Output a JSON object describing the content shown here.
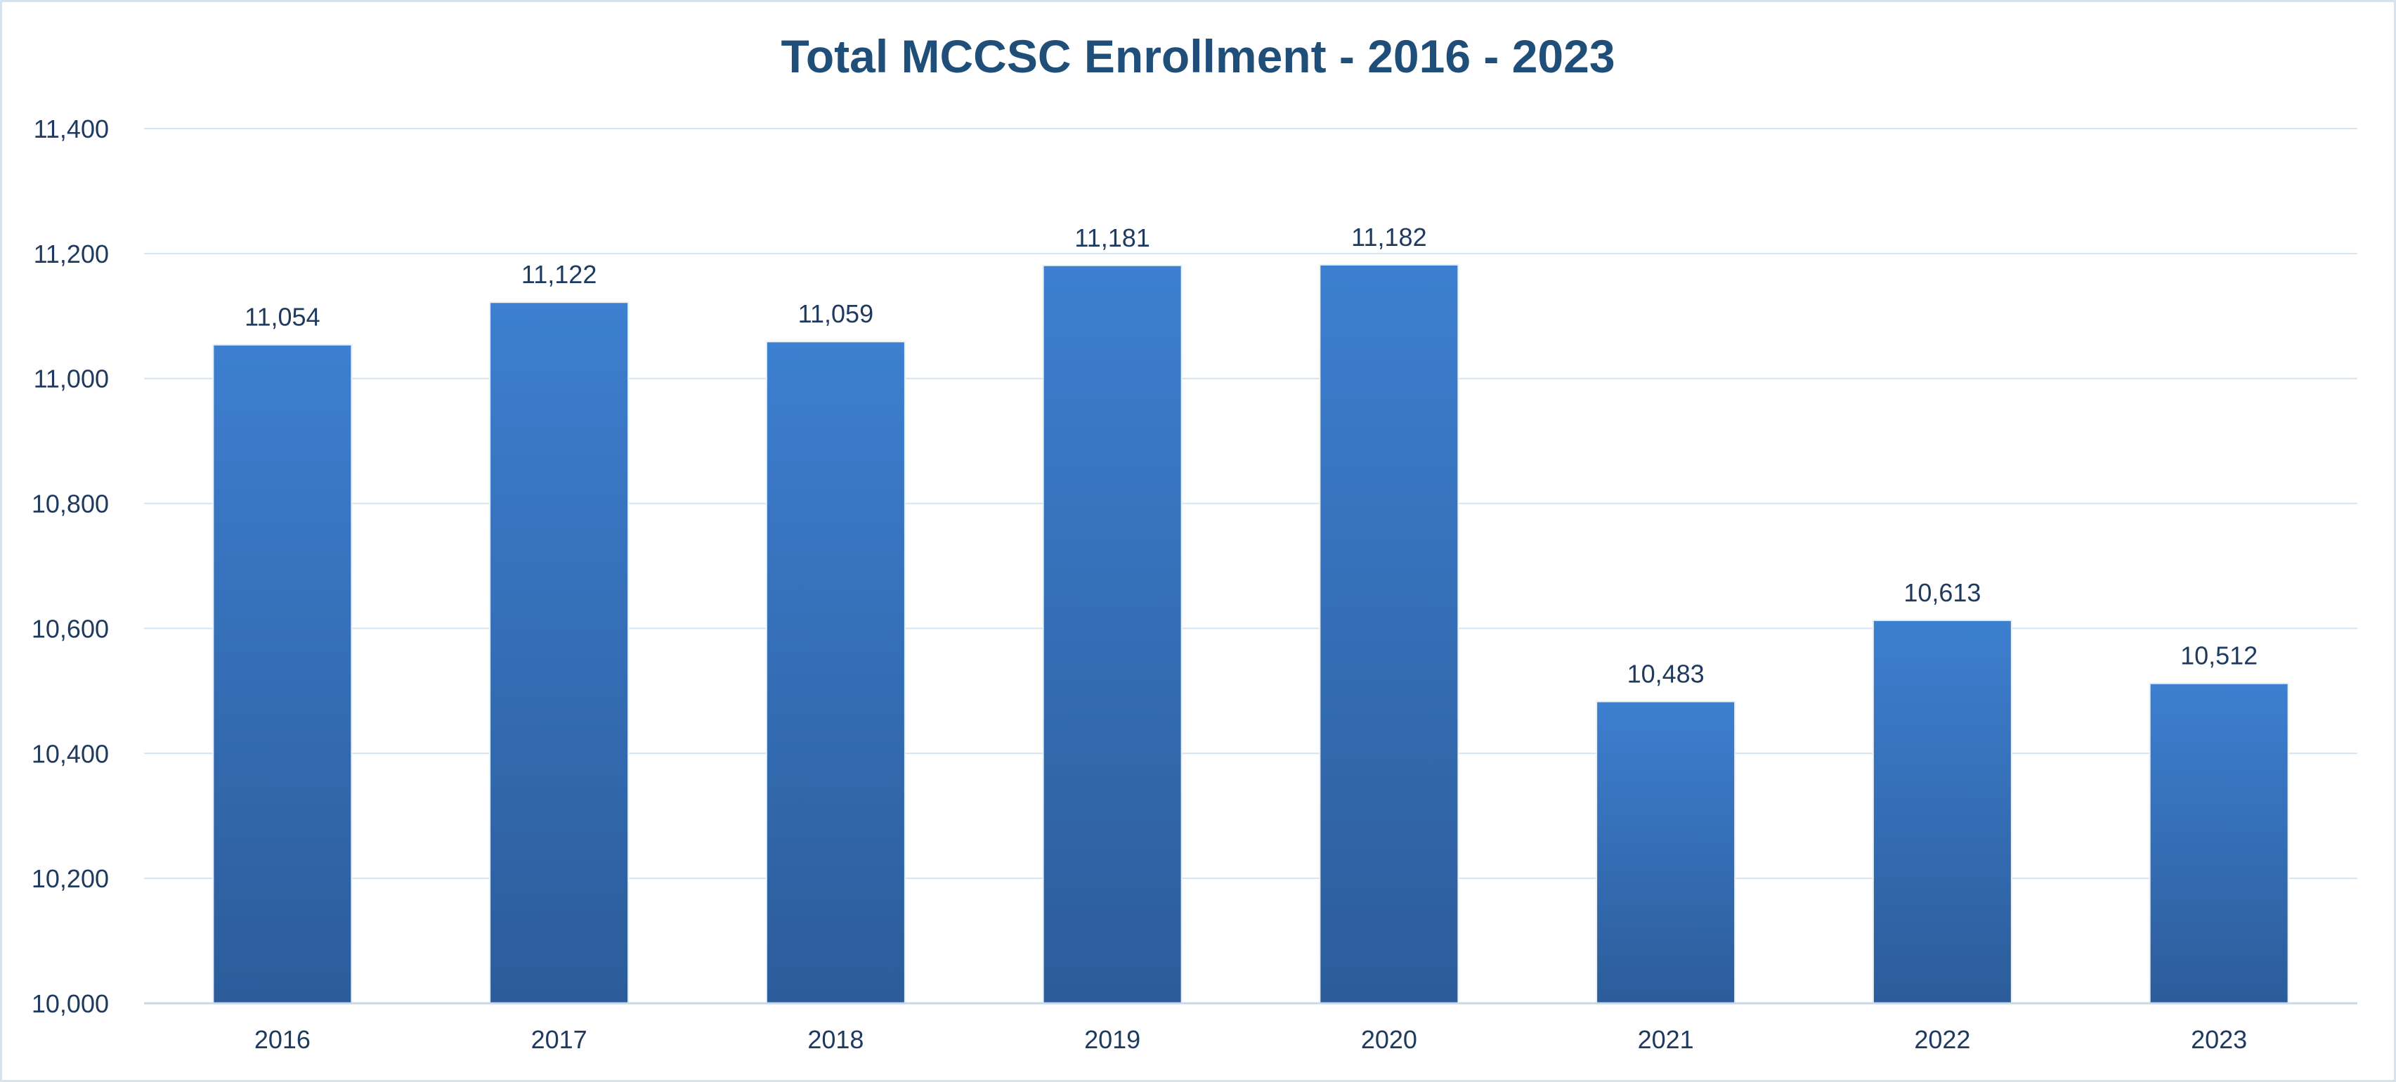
{
  "chart_data": {
    "type": "bar",
    "title": "Total MCCSC Enrollment - 2016 - 2023",
    "xlabel": "",
    "ylabel": "",
    "categories": [
      "2016",
      "2017",
      "2018",
      "2019",
      "2020",
      "2021",
      "2022",
      "2023"
    ],
    "values": [
      11054,
      11122,
      11059,
      11181,
      11182,
      10483,
      10613,
      10512
    ],
    "value_labels": [
      "11,054",
      "11,122",
      "11,059",
      "11,181",
      "11,182",
      "10,483",
      "10,613",
      "10,512"
    ],
    "ylim": [
      10000,
      11400
    ],
    "yticks": [
      10000,
      10200,
      10400,
      10600,
      10800,
      11000,
      11200,
      11400
    ],
    "ytick_labels": [
      "10,000",
      "10,200",
      "10,400",
      "10,600",
      "10,800",
      "11,000",
      "11,200",
      "11,400"
    ],
    "grid": true,
    "legend": "none",
    "colors": {
      "bar_top": "#3d7fd0",
      "bar_bottom": "#2c5c9a",
      "title": "#1f4e79",
      "text": "#1f3a5f",
      "grid": "#d6e4f0"
    }
  }
}
